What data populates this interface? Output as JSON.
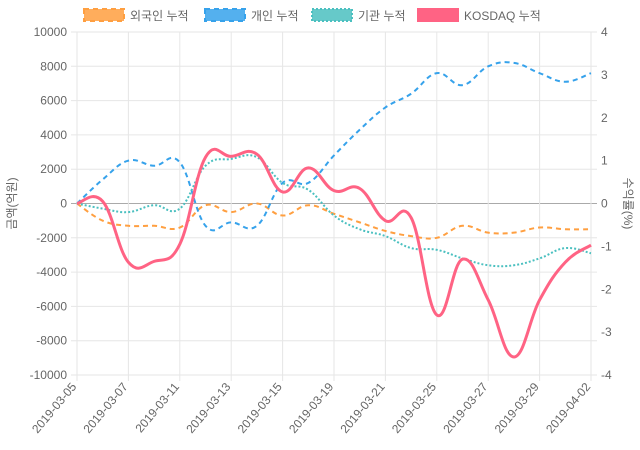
{
  "chart_data": {
    "type": "line",
    "x": [
      "2019-03-05",
      "2019-03-06",
      "2019-03-07",
      "2019-03-08",
      "2019-03-11",
      "2019-03-12",
      "2019-03-13",
      "2019-03-14",
      "2019-03-15",
      "2019-03-18",
      "2019-03-19",
      "2019-03-20",
      "2019-03-21",
      "2019-03-22",
      "2019-03-25",
      "2019-03-26",
      "2019-03-27",
      "2019-03-28",
      "2019-03-29",
      "2019-04-01",
      "2019-04-02"
    ],
    "xtick_labels": [
      "2019-03-05",
      "2019-03-07",
      "2019-03-11",
      "2019-03-13",
      "2019-03-15",
      "2019-03-19",
      "2019-03-21",
      "2019-03-25",
      "2019-03-27",
      "2019-03-29",
      "2019-04-02"
    ],
    "ylabel": "금액(억원)",
    "y2label": "수익률(%)",
    "ylim": [
      -10000,
      10000
    ],
    "y2lim": [
      -4,
      4
    ],
    "yticks": [
      "10000",
      "8000",
      "6000",
      "4000",
      "2000",
      "0",
      "-2000",
      "-4000",
      "-6000",
      "-8000",
      "-10000"
    ],
    "y2ticks": [
      "4",
      "3",
      "2",
      "1",
      "0",
      "-1",
      "-2",
      "-3",
      "-4"
    ],
    "legend_position": "top",
    "grid": true,
    "series": [
      {
        "name": "외국인 누적",
        "axis": "left",
        "color": "#ff9f40",
        "style": "dashed",
        "values": [
          0,
          -1000,
          -1300,
          -1300,
          -1400,
          -100,
          -500,
          0,
          -700,
          -100,
          -600,
          -1100,
          -1600,
          -1900,
          -2000,
          -1300,
          -1700,
          -1700,
          -1400,
          -1500,
          -1500
        ]
      },
      {
        "name": "개인 누적",
        "axis": "left",
        "color": "#36a2eb",
        "style": "dashed",
        "values": [
          0,
          1400,
          2500,
          2200,
          2400,
          -1300,
          -1100,
          -1300,
          1200,
          1200,
          2800,
          4300,
          5600,
          6400,
          7600,
          6900,
          8000,
          8200,
          7600,
          7100,
          7600
        ]
      },
      {
        "name": "기관 누적",
        "axis": "left",
        "color": "#4bc0c0",
        "style": "dotted",
        "values": [
          0,
          -300,
          -500,
          -100,
          -300,
          2200,
          2600,
          2700,
          1200,
          800,
          -700,
          -1500,
          -1900,
          -2600,
          -2700,
          -3200,
          -3600,
          -3600,
          -3200,
          -2600,
          -2900
        ]
      },
      {
        "name": "KOSDAQ 누적",
        "axis": "right",
        "color": "#ff6384",
        "style": "solid",
        "values": [
          0,
          0.05,
          -1.37,
          -1.35,
          -0.95,
          1.08,
          1.1,
          1.15,
          0.27,
          0.83,
          0.3,
          0.35,
          -0.4,
          -0.33,
          -2.6,
          -1.3,
          -2.25,
          -3.58,
          -2.25,
          -1.37,
          -0.97
        ]
      }
    ]
  }
}
